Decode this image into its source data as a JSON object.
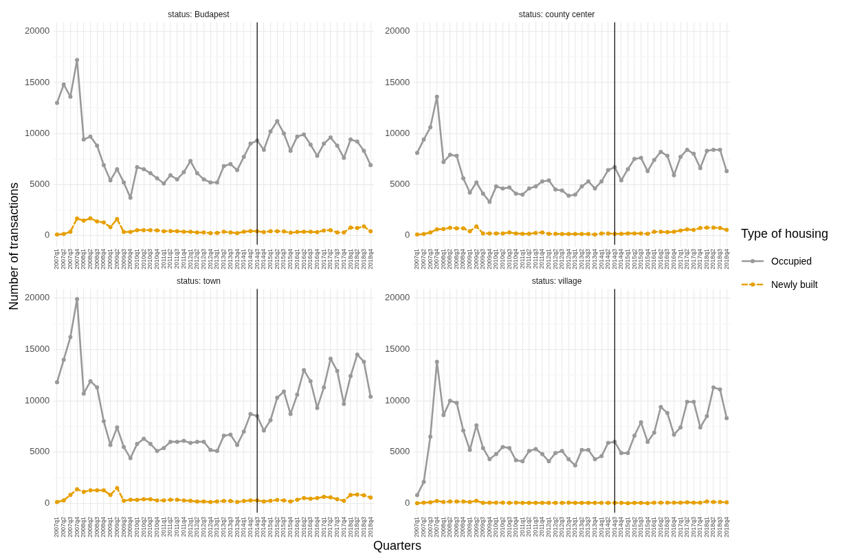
{
  "chart_data": [
    {
      "type": "line",
      "title": "status: Budapest",
      "ylabel": "Number of transactions",
      "grid": true,
      "marker": "circle",
      "legend": "right",
      "legend_title": "Type of housing",
      "categories": [
        "2007q1",
        "2007q2",
        "2007q3",
        "2007q4",
        "2008q1",
        "2008q2",
        "2008q3",
        "2008q4",
        "2009q1",
        "2009q2",
        "2009q3",
        "2009q4",
        "2010q1",
        "2010q2",
        "2010q3",
        "2010q4",
        "2011q1",
        "2011q2",
        "2011q3",
        "2011q4",
        "2012q1",
        "2012q2",
        "2012q3",
        "2012q4",
        "2013q1",
        "2013q2",
        "2013q3",
        "2013q4",
        "2014q1",
        "2014q2",
        "2014q3",
        "2014q4",
        "2015q1",
        "2015q2",
        "2015q3",
        "2015q4",
        "2016q1",
        "2016q2",
        "2016q3",
        "2016q4",
        "2017q1",
        "2017q2",
        "2017q3",
        "2017q4",
        "2018q1",
        "2018q2",
        "2018q3",
        "2018q4"
      ],
      "ylim": [
        -900,
        20900
      ],
      "yticks": [
        0,
        {
          "value": 2500,
          "label": null
        },
        5000,
        {
          "value": 7500,
          "label": null
        },
        10000,
        {
          "value": 12500,
          "label": null
        },
        15000,
        {
          "value": 17500,
          "label": null
        },
        20000
      ],
      "ref_lines": [
        {
          "axis": "x",
          "value": "2014q3",
          "color": "#000000"
        }
      ],
      "series": [
        {
          "name": "Occupied",
          "color": "#999999",
          "line_style": "solid",
          "values": [
            13000,
            14800,
            13600,
            17200,
            9400,
            9700,
            8800,
            6900,
            5400,
            6500,
            5200,
            3700,
            6700,
            6500,
            6100,
            5600,
            5100,
            5900,
            5500,
            6200,
            7300,
            6100,
            5500,
            5200,
            5200,
            6800,
            7000,
            6400,
            7700,
            9000,
            9300,
            8400,
            10200,
            11200,
            10000,
            8300,
            9700,
            9900,
            8900,
            7800,
            9000,
            9600,
            8800,
            7600,
            9400,
            9200,
            8300,
            6900
          ]
        },
        {
          "name": "Newly built",
          "color": "#e69f00",
          "line_style": "dashed",
          "values": [
            90,
            140,
            360,
            1660,
            1450,
            1680,
            1380,
            1270,
            820,
            1610,
            340,
            340,
            520,
            520,
            520,
            500,
            410,
            430,
            410,
            360,
            360,
            290,
            290,
            230,
            250,
            360,
            290,
            230,
            360,
            430,
            410,
            320,
            410,
            410,
            390,
            270,
            340,
            360,
            360,
            320,
            480,
            520,
            290,
            290,
            770,
            730,
            880,
            410
          ]
        }
      ]
    },
    {
      "type": "line",
      "title": "status: county center",
      "grid": true,
      "marker": "circle",
      "categories": [
        "2007q1",
        "2007q2",
        "2007q3",
        "2007q4",
        "2008q1",
        "2008q2",
        "2008q3",
        "2008q4",
        "2009q1",
        "2009q2",
        "2009q3",
        "2009q4",
        "2010q1",
        "2010q2",
        "2010q3",
        "2010q4",
        "2011q1",
        "2011q2",
        "2011q3",
        "2011q4",
        "2012q1",
        "2012q2",
        "2012q3",
        "2012q4",
        "2013q1",
        "2013q2",
        "2013q3",
        "2013q4",
        "2014q1",
        "2014q2",
        "2014q3",
        "2014q4",
        "2015q1",
        "2015q2",
        "2015q3",
        "2015q4",
        "2016q1",
        "2016q2",
        "2016q3",
        "2016q4",
        "2017q1",
        "2017q2",
        "2017q3",
        "2017q4",
        "2018q1",
        "2018q2",
        "2018q3",
        "2018q4"
      ],
      "ylim": [
        -900,
        20900
      ],
      "yticks": [
        0,
        {
          "value": 2500,
          "label": null
        },
        5000,
        {
          "value": 7500,
          "label": null
        },
        10000,
        {
          "value": 12500,
          "label": null
        },
        15000,
        {
          "value": 17500,
          "label": null
        },
        20000
      ],
      "ref_lines": [
        {
          "axis": "x",
          "value": "2014q3",
          "color": "#000000"
        }
      ],
      "series": [
        {
          "color": "#999999",
          "line_style": "solid",
          "values": [
            8100,
            9400,
            10600,
            13600,
            7200,
            7900,
            7800,
            5600,
            4200,
            5200,
            4100,
            3300,
            4800,
            4600,
            4700,
            4100,
            4000,
            4600,
            4800,
            5300,
            5400,
            4500,
            4400,
            3900,
            4000,
            4800,
            5300,
            4600,
            5300,
            6400,
            6700,
            5400,
            6500,
            7500,
            7600,
            6300,
            7400,
            8200,
            7800,
            5900,
            7700,
            8400,
            8000,
            6600,
            8300,
            8400,
            8400,
            6300
          ]
        },
        {
          "color": "#e69f00",
          "line_style": "dashed",
          "values": [
            90,
            140,
            290,
            590,
            630,
            750,
            700,
            700,
            410,
            880,
            200,
            200,
            200,
            200,
            290,
            200,
            160,
            160,
            250,
            290,
            160,
            160,
            140,
            140,
            140,
            140,
            140,
            90,
            200,
            200,
            160,
            160,
            200,
            200,
            200,
            160,
            360,
            360,
            320,
            360,
            480,
            590,
            540,
            730,
            770,
            770,
            730,
            540
          ]
        }
      ]
    },
    {
      "type": "line",
      "title": "status: town",
      "xlabel": "Quarters",
      "grid": true,
      "marker": "circle",
      "categories": [
        "2007q1",
        "2007q2",
        "2007q3",
        "2007q4",
        "2008q1",
        "2008q2",
        "2008q3",
        "2008q4",
        "2009q1",
        "2009q2",
        "2009q3",
        "2009q4",
        "2010q1",
        "2010q2",
        "2010q3",
        "2010q4",
        "2011q1",
        "2011q2",
        "2011q3",
        "2011q4",
        "2012q1",
        "2012q2",
        "2012q3",
        "2012q4",
        "2013q1",
        "2013q2",
        "2013q3",
        "2013q4",
        "2014q1",
        "2014q2",
        "2014q3",
        "2014q4",
        "2015q1",
        "2015q2",
        "2015q3",
        "2015q4",
        "2016q1",
        "2016q2",
        "2016q3",
        "2016q4",
        "2017q1",
        "2017q2",
        "2017q3",
        "2017q4",
        "2018q1",
        "2018q2",
        "2018q3",
        "2018q4"
      ],
      "ylim": [
        -900,
        20900
      ],
      "yticks": [
        0,
        {
          "value": 2500,
          "label": null
        },
        5000,
        {
          "value": 7500,
          "label": null
        },
        10000,
        {
          "value": 12500,
          "label": null
        },
        15000,
        {
          "value": 17500,
          "label": null
        },
        20000
      ],
      "ref_lines": [
        {
          "axis": "x",
          "value": "2014q3",
          "color": "#000000"
        }
      ],
      "series": [
        {
          "color": "#999999",
          "line_style": "solid",
          "values": [
            11800,
            14000,
            16200,
            19900,
            10700,
            11900,
            11300,
            8000,
            5700,
            7400,
            5500,
            4400,
            5800,
            6300,
            5800,
            5100,
            5400,
            6000,
            6000,
            6100,
            5900,
            6000,
            6000,
            5200,
            5100,
            6600,
            6700,
            5700,
            7000,
            8700,
            8500,
            7100,
            8100,
            10300,
            10900,
            8700,
            10600,
            13000,
            11900,
            9300,
            11300,
            14100,
            12900,
            9700,
            12400,
            14500,
            13800,
            10400
          ]
        },
        {
          "color": "#e69f00",
          "line_style": "dashed",
          "values": [
            140,
            290,
            820,
            1380,
            1130,
            1270,
            1270,
            1270,
            820,
            1500,
            250,
            360,
            340,
            410,
            410,
            290,
            290,
            360,
            360,
            290,
            250,
            180,
            180,
            140,
            180,
            230,
            230,
            140,
            230,
            290,
            290,
            180,
            250,
            340,
            290,
            180,
            360,
            520,
            450,
            520,
            630,
            590,
            410,
            250,
            820,
            860,
            790,
            570
          ]
        }
      ]
    },
    {
      "type": "line",
      "title": "status: village",
      "grid": true,
      "marker": "circle",
      "categories": [
        "2007q1",
        "2007q2",
        "2007q3",
        "2007q4",
        "2008q1",
        "2008q2",
        "2008q3",
        "2008q4",
        "2009q1",
        "2009q2",
        "2009q3",
        "2009q4",
        "2010q1",
        "2010q2",
        "2010q3",
        "2010q4",
        "2011q1",
        "2011q2",
        "2011q3",
        "2011q4",
        "2012q1",
        "2012q2",
        "2012q3",
        "2012q4",
        "2013q1",
        "2013q2",
        "2013q3",
        "2013q4",
        "2014q1",
        "2014q2",
        "2014q3",
        "2014q4",
        "2015q1",
        "2015q2",
        "2015q3",
        "2015q4",
        "2016q1",
        "2016q2",
        "2016q3",
        "2016q4",
        "2017q1",
        "2017q2",
        "2017q3",
        "2017q4",
        "2018q1",
        "2018q2",
        "2018q3",
        "2018q4"
      ],
      "ylim": [
        -900,
        20900
      ],
      "yticks": [
        0,
        {
          "value": 2500,
          "label": null
        },
        5000,
        {
          "value": 7500,
          "label": null
        },
        10000,
        {
          "value": 12500,
          "label": null
        },
        15000,
        {
          "value": 17500,
          "label": null
        },
        20000
      ],
      "ref_lines": [
        {
          "axis": "x",
          "value": "2014q3",
          "color": "#000000"
        }
      ],
      "series": [
        {
          "color": "#999999",
          "line_style": "solid",
          "values": [
            800,
            2100,
            6500,
            13800,
            8600,
            10000,
            9800,
            7100,
            5200,
            7600,
            5400,
            4300,
            4800,
            5500,
            5400,
            4200,
            4100,
            5100,
            5300,
            4800,
            4100,
            4900,
            5100,
            4300,
            3700,
            5200,
            5200,
            4300,
            4600,
            5900,
            6000,
            4900,
            4900,
            6600,
            7900,
            6000,
            6900,
            9400,
            8800,
            6700,
            7400,
            9900,
            9900,
            7400,
            8500,
            11300,
            11100,
            8300
          ]
        },
        {
          "color": "#e69f00",
          "line_style": "dashed",
          "values": [
            20,
            70,
            110,
            230,
            140,
            180,
            180,
            180,
            140,
            250,
            50,
            70,
            70,
            70,
            50,
            70,
            50,
            50,
            50,
            50,
            50,
            50,
            50,
            70,
            50,
            50,
            50,
            50,
            50,
            50,
            50,
            50,
            20,
            50,
            50,
            20,
            70,
            70,
            70,
            70,
            70,
            110,
            70,
            70,
            180,
            140,
            140,
            110
          ]
        }
      ]
    }
  ]
}
